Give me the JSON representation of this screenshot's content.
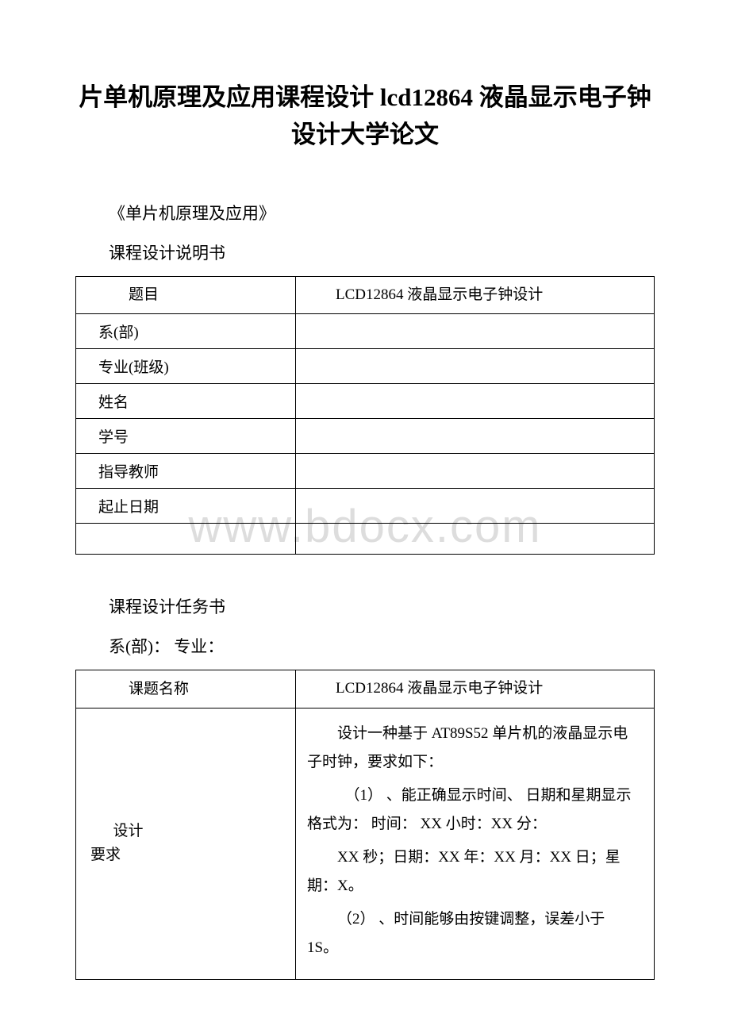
{
  "title": "片单机原理及应用课程设计 lcd12864 液晶显示电子钟设计大学论文",
  "subtitle1": "《单片机原理及应用》",
  "subtitle2": "课程设计说明书",
  "watermark": "www.bdocx.com",
  "info_table": {
    "rows": [
      {
        "label": "题目",
        "value": "LCD12864 液晶显示电子钟设计"
      },
      {
        "label": "系(部)",
        "value": ""
      },
      {
        "label": "专业(班级)",
        "value": ""
      },
      {
        "label": "姓名",
        "value": ""
      },
      {
        "label": "学号",
        "value": ""
      },
      {
        "label": "指导教师",
        "value": ""
      },
      {
        "label": "起止日期",
        "value": ""
      }
    ]
  },
  "task_heading": "课程设计任务书",
  "task_dept": "系(部)：  专业：",
  "task_table": {
    "topic_label": "课题名称",
    "topic_value": "LCD12864 液晶显示电子钟设计",
    "req_label_1": "设计",
    "req_label_2": "要求",
    "req_intro": "设计一种基于 AT89S52 单片机的液晶显示电子时钟，要求如下：",
    "req_1a": "（1） 、能正确显示时间、 日期和星期显示格式为： 时间： XX 小时：XX 分：",
    "req_1b": "XX 秒；日期：XX 年：XX 月：XX 日；星期：X。",
    "req_2": "（2） 、时间能够由按键调整，误差小于 1S。"
  },
  "colors": {
    "text": "#000000",
    "background": "#ffffff",
    "border": "#000000",
    "watermark": "#dddddd"
  }
}
